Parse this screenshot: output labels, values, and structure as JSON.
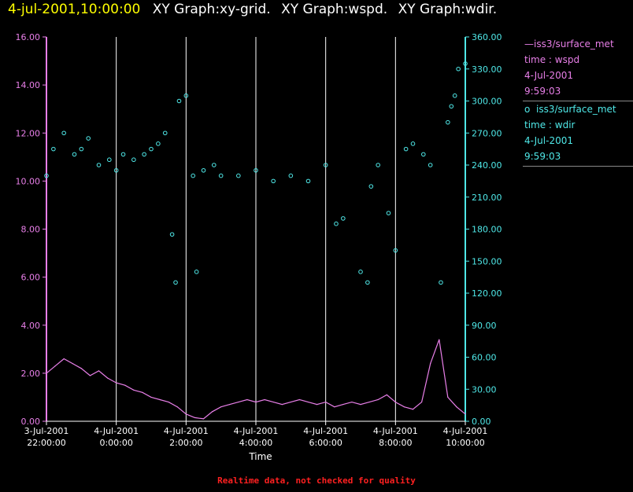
{
  "header": {
    "date": "4-jul-2001,10:00:00",
    "parts": [
      "XY Graph:xy-grid.",
      "XY Graph:wspd.",
      "XY Graph:wdir."
    ]
  },
  "legend": {
    "wspd": {
      "line_symbol": "—",
      "name": "iss3/surface_met",
      "field": "time : wspd",
      "date": "4-Jul-2001",
      "time": "9:59:03"
    },
    "wdir": {
      "line_symbol": "o",
      "name": "iss3/surface_met",
      "field": "time : wdir",
      "date": "4-Jul-2001",
      "time": "9:59:03"
    }
  },
  "footer": {
    "note": "Realtime data, not checked for quality"
  },
  "colors": {
    "wspd": "#e87fe8",
    "wdir": "#4fe8e8",
    "grid": "#ffffff",
    "background": "#000000"
  },
  "chart_data": {
    "type": "line",
    "xlabel": "Time",
    "x_range_hours": [
      -2,
      10
    ],
    "x_ticks": [
      {
        "h": -2,
        "l1": "3-Jul-2001",
        "l2": "22:00:00"
      },
      {
        "h": 0,
        "l1": "4-Jul-2001",
        "l2": "0:00:00"
      },
      {
        "h": 2,
        "l1": "4-Jul-2001",
        "l2": "2:00:00"
      },
      {
        "h": 4,
        "l1": "4-Jul-2001",
        "l2": "4:00:00"
      },
      {
        "h": 6,
        "l1": "4-Jul-2001",
        "l2": "6:00:00"
      },
      {
        "h": 8,
        "l1": "4-Jul-2001",
        "l2": "8:00:00"
      },
      {
        "h": 10,
        "l1": "4-Jul-2001",
        "l2": "10:00:00"
      }
    ],
    "y_left": {
      "ylim": [
        0,
        16
      ],
      "ticks": [
        "0.00",
        "2.00",
        "4.00",
        "6.00",
        "8.00",
        "10.00",
        "12.00",
        "14.00",
        "16.00"
      ]
    },
    "y_right": {
      "ylim": [
        0,
        360
      ],
      "ticks": [
        "0.00",
        "30.00",
        "60.00",
        "90.00",
        "120.00",
        "150.00",
        "180.00",
        "210.00",
        "240.00",
        "270.00",
        "300.00",
        "330.00",
        "360.00"
      ]
    },
    "grid": "vertical",
    "series": [
      {
        "name": "iss3/surface_met time : wspd",
        "axis": "left",
        "style": "line",
        "x_hours": [
          -2.0,
          -1.75,
          -1.5,
          -1.25,
          -1.0,
          -0.75,
          -0.5,
          -0.25,
          0.0,
          0.25,
          0.5,
          0.75,
          1.0,
          1.25,
          1.5,
          1.75,
          2.0,
          2.25,
          2.5,
          2.75,
          3.0,
          3.25,
          3.5,
          3.75,
          4.0,
          4.25,
          4.5,
          4.75,
          5.0,
          5.25,
          5.5,
          5.75,
          6.0,
          6.25,
          6.5,
          6.75,
          7.0,
          7.25,
          7.5,
          7.75,
          8.0,
          8.25,
          8.5,
          8.75,
          9.0,
          9.25,
          9.5,
          9.75,
          10.0
        ],
        "values": [
          2.0,
          2.3,
          2.6,
          2.4,
          2.2,
          1.9,
          2.1,
          1.8,
          1.6,
          1.5,
          1.3,
          1.2,
          1.0,
          0.9,
          0.8,
          0.6,
          0.3,
          0.15,
          0.1,
          0.4,
          0.6,
          0.7,
          0.8,
          0.9,
          0.8,
          0.9,
          0.8,
          0.7,
          0.8,
          0.9,
          0.8,
          0.7,
          0.8,
          0.6,
          0.7,
          0.8,
          0.7,
          0.8,
          0.9,
          1.1,
          0.8,
          0.6,
          0.5,
          0.8,
          2.4,
          3.4,
          1.0,
          0.6,
          0.3
        ]
      },
      {
        "name": "iss3/surface_met time : wdir",
        "axis": "right",
        "style": "scatter",
        "x_hours": [
          -2.0,
          -1.8,
          -1.5,
          -1.2,
          -1.0,
          -0.8,
          -0.5,
          -0.2,
          0.0,
          0.2,
          0.5,
          0.8,
          1.0,
          1.2,
          1.4,
          1.6,
          1.7,
          1.8,
          2.0,
          2.2,
          2.3,
          2.5,
          2.8,
          3.0,
          3.5,
          4.0,
          4.5,
          5.0,
          5.5,
          6.0,
          6.3,
          6.5,
          7.0,
          7.2,
          7.3,
          7.5,
          7.8,
          8.0,
          8.3,
          8.5,
          8.8,
          9.0,
          9.3,
          9.5,
          9.6,
          9.7,
          9.8,
          10.0
        ],
        "values": [
          230,
          255,
          270,
          250,
          255,
          265,
          240,
          245,
          235,
          250,
          245,
          250,
          255,
          260,
          270,
          175,
          130,
          300,
          305,
          230,
          140,
          235,
          240,
          230,
          230,
          235,
          225,
          230,
          225,
          240,
          185,
          190,
          140,
          130,
          220,
          240,
          195,
          160,
          255,
          260,
          250,
          240,
          130,
          280,
          295,
          305,
          330,
          335
        ]
      }
    ]
  }
}
